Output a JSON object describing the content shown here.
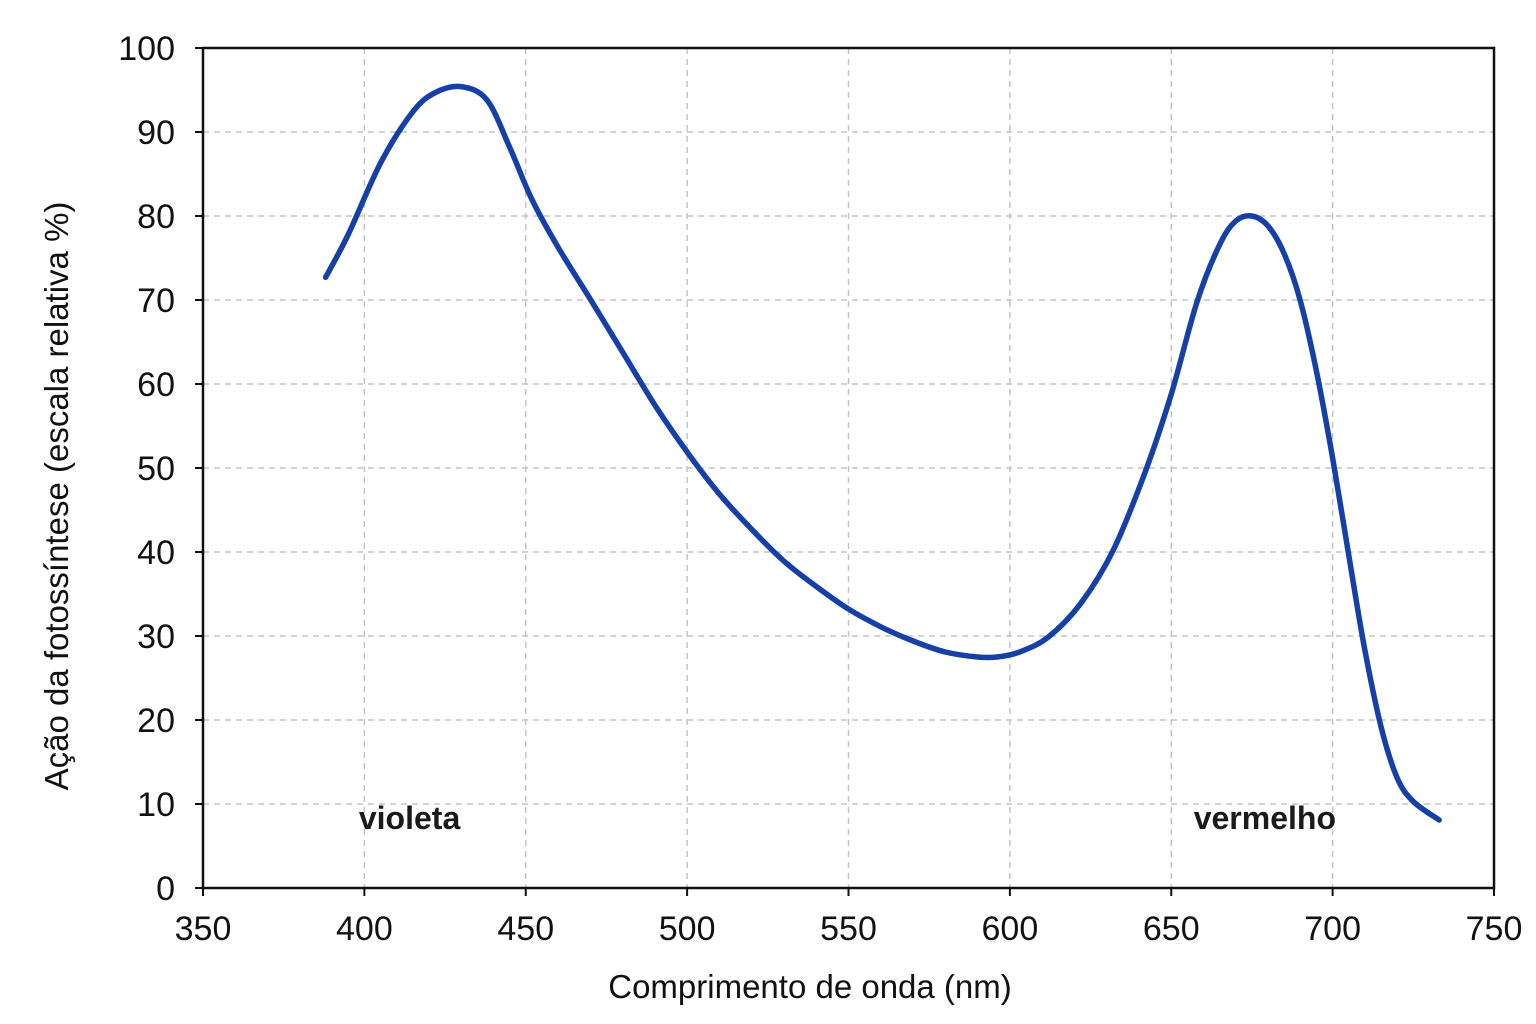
{
  "chart_data": {
    "type": "line",
    "title": "",
    "xlabel": "Comprimento de onda (nm)",
    "ylabel": "Ação da fotossíntese (escala relativa %)",
    "xlim": [
      350,
      750
    ],
    "ylim": [
      0,
      100
    ],
    "xticks": [
      350,
      400,
      450,
      500,
      550,
      600,
      650,
      700,
      750
    ],
    "yticks": [
      0,
      10,
      20,
      30,
      40,
      50,
      60,
      70,
      80,
      90,
      100
    ],
    "grid": true,
    "line_color": "#1540a8",
    "annotations": [
      {
        "text": "violeta",
        "x": 414,
        "y": 7
      },
      {
        "text": "vermelho",
        "x": 679,
        "y": 7
      }
    ],
    "series": [
      {
        "x": [
          388,
          395,
          405,
          415,
          422,
          430,
          438,
          445,
          452,
          460,
          470,
          480,
          490,
          500,
          510,
          520,
          530,
          540,
          550,
          560,
          570,
          580,
          590,
          596,
          603,
          612,
          622,
          632,
          642,
          650,
          658,
          665,
          670,
          675,
          680,
          685,
          690,
          695,
          700,
          705,
          710,
          715,
          720,
          725,
          733
        ],
        "y": [
          72.7,
          77.8,
          86.3,
          92.4,
          94.7,
          95.4,
          93.8,
          88.2,
          81.9,
          76.3,
          70.1,
          63.8,
          57.5,
          51.9,
          46.9,
          42.7,
          38.9,
          35.9,
          33.2,
          31.1,
          29.4,
          28.1,
          27.5,
          27.5,
          28.1,
          29.9,
          33.9,
          40.2,
          49.6,
          58.8,
          69.8,
          76.6,
          79.4,
          80.0,
          78.8,
          75.5,
          69.9,
          61.5,
          51.2,
          39.6,
          28.3,
          19.2,
          13.1,
          10.3,
          8.1
        ]
      }
    ]
  }
}
